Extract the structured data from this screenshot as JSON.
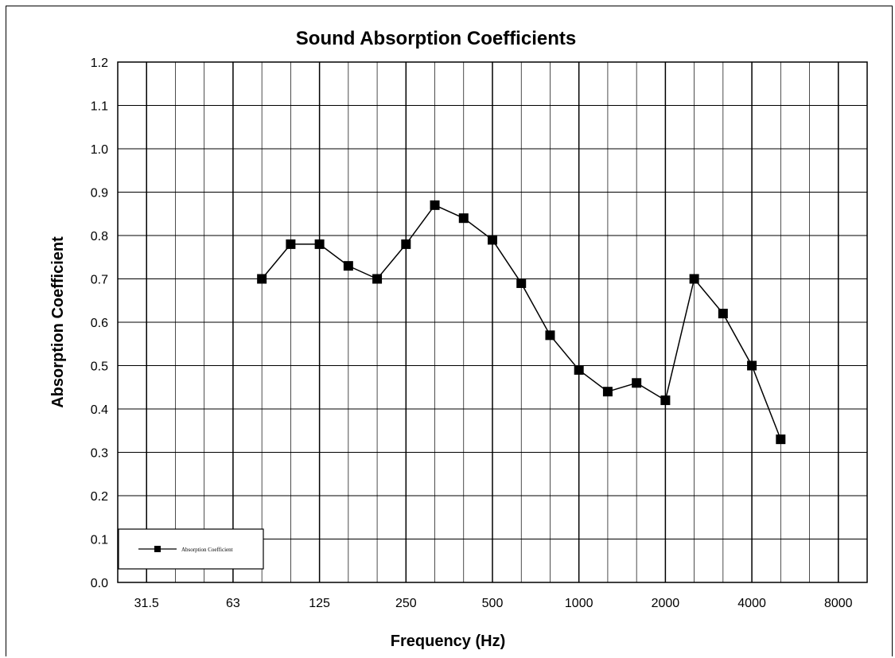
{
  "chart_data": {
    "type": "line",
    "title": "Sound Absorption Coefficients",
    "xlabel": "Frequency (Hz)",
    "ylabel": "Absorption Coefficient",
    "x_scale": "log (one-third octave bands)",
    "x_tick_labels": [
      "31.5",
      "63",
      "125",
      "250",
      "500",
      "1000",
      "2000",
      "4000",
      "8000"
    ],
    "y_tick_labels": [
      "0.0",
      "0.1",
      "0.2",
      "0.3",
      "0.4",
      "0.5",
      "0.6",
      "0.7",
      "0.8",
      "0.9",
      "1.0",
      "1.1",
      "1.2"
    ],
    "ylim": [
      0,
      1.2
    ],
    "grid": true,
    "legend_position": "bottom-left",
    "series": [
      {
        "name": "Absorption Coefficient",
        "color": "#000000",
        "marker": "square",
        "x": [
          80,
          100,
          125,
          160,
          200,
          250,
          315,
          400,
          500,
          630,
          800,
          1000,
          1250,
          1600,
          2000,
          2500,
          3150,
          4000,
          5000
        ],
        "y": [
          0.7,
          0.78,
          0.78,
          0.73,
          0.7,
          0.78,
          0.87,
          0.84,
          0.79,
          0.69,
          0.57,
          0.49,
          0.44,
          0.46,
          0.42,
          0.7,
          0.62,
          0.5,
          0.33
        ]
      }
    ]
  }
}
